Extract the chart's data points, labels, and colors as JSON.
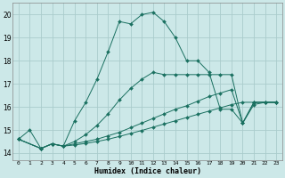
{
  "xlabel": "Humidex (Indice chaleur)",
  "xlim": [
    -0.5,
    23.5
  ],
  "ylim": [
    13.7,
    20.5
  ],
  "xticks": [
    0,
    1,
    2,
    3,
    4,
    5,
    6,
    7,
    8,
    9,
    10,
    11,
    12,
    13,
    14,
    15,
    16,
    17,
    18,
    19,
    20,
    21,
    22,
    23
  ],
  "yticks": [
    14,
    15,
    16,
    17,
    18,
    19,
    20
  ],
  "bg_color": "#cce8e8",
  "grid_color": "#aacccc",
  "line_color": "#1a7060",
  "line1_x": [
    0,
    1,
    2,
    3,
    4,
    5,
    6,
    7,
    8,
    9,
    10,
    11,
    12,
    13,
    14,
    15,
    16,
    17,
    18,
    19,
    20,
    21,
    22,
    23
  ],
  "line1_y": [
    14.6,
    15.0,
    14.2,
    14.4,
    14.3,
    15.4,
    16.2,
    17.2,
    18.4,
    19.7,
    19.6,
    20.0,
    20.1,
    19.7,
    19.0,
    18.0,
    18.0,
    17.5,
    15.9,
    15.9,
    15.3,
    16.2,
    16.2,
    16.2
  ],
  "line2_x": [
    0,
    2,
    3,
    4,
    5,
    6,
    7,
    8,
    9,
    10,
    11,
    12,
    13,
    14,
    15,
    16,
    17,
    18,
    19,
    20,
    21,
    22,
    23
  ],
  "line2_y": [
    14.6,
    14.2,
    14.4,
    14.3,
    14.5,
    14.8,
    15.2,
    15.7,
    16.3,
    16.8,
    17.2,
    17.5,
    17.4,
    17.4,
    17.4,
    17.4,
    17.4,
    17.4,
    17.4,
    15.3,
    16.2,
    16.2,
    16.2
  ],
  "line3_x": [
    0,
    2,
    3,
    4,
    5,
    6,
    7,
    8,
    9,
    10,
    11,
    12,
    13,
    14,
    15,
    16,
    17,
    18,
    19,
    20,
    21,
    22,
    23
  ],
  "line3_y": [
    14.6,
    14.2,
    14.4,
    14.3,
    14.4,
    14.5,
    14.6,
    14.75,
    14.9,
    15.1,
    15.3,
    15.5,
    15.7,
    15.9,
    16.05,
    16.25,
    16.45,
    16.6,
    16.75,
    15.3,
    16.1,
    16.2,
    16.2
  ],
  "line4_x": [
    0,
    2,
    3,
    4,
    5,
    6,
    7,
    8,
    9,
    10,
    11,
    12,
    13,
    14,
    15,
    16,
    17,
    18,
    19,
    20,
    21,
    22,
    23
  ],
  "line4_y": [
    14.6,
    14.2,
    14.4,
    14.3,
    14.35,
    14.42,
    14.5,
    14.6,
    14.72,
    14.85,
    14.98,
    15.12,
    15.26,
    15.4,
    15.54,
    15.68,
    15.82,
    15.96,
    16.1,
    16.2,
    16.2,
    16.2,
    16.2
  ]
}
